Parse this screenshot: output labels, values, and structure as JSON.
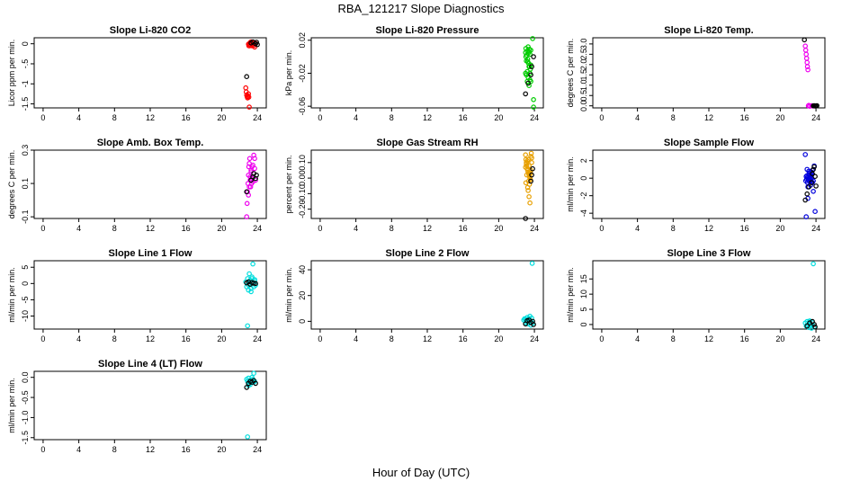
{
  "title": "RBA_121217  Slope Diagnostics",
  "x_label": "Hour of Day (UTC)",
  "chart_data": [
    {
      "type": "scatter",
      "title": "Slope Li-820 CO2",
      "xlabel": "",
      "ylabel": "Licor ppm per min.",
      "xlim": [
        -1,
        25
      ],
      "ylim": [
        -1.6,
        0.15
      ],
      "xticks": [
        0,
        4,
        8,
        12,
        16,
        20,
        24
      ],
      "yticks": [
        0,
        -0.5,
        -1,
        -1.5
      ],
      "ytick_labels": [
        "0",
        "-.5",
        "-1",
        "-1.5"
      ],
      "series": [
        {
          "name": "red",
          "color": "#ff0000",
          "x": [
            22.7,
            22.75,
            22.8,
            22.85,
            22.9,
            22.95,
            23.0,
            23.05,
            23.1,
            23.15,
            23.2,
            23.0,
            23.05,
            23.1,
            23.2,
            23.25,
            23.3,
            23.4,
            23.5,
            23.6,
            23.7,
            23.8
          ],
          "y": [
            -1.1,
            -1.2,
            -1.28,
            -1.32,
            -1.35,
            -1.3,
            -1.25,
            -1.33,
            -1.58,
            -0.05,
            -0.02,
            -0.01,
            -0.05,
            0.0,
            0.03,
            -0.03,
            0.05,
            -0.05,
            0.02,
            -0.04,
            -0.08,
            0.01
          ]
        },
        {
          "name": "black",
          "color": "#000000",
          "x": [
            22.8,
            23.3,
            23.5,
            23.8,
            23.9,
            24.0
          ],
          "y": [
            -0.82,
            0.02,
            0.05,
            0.0,
            0.04,
            -0.02
          ]
        }
      ]
    },
    {
      "type": "scatter",
      "title": "Slope Li-820 Pressure",
      "xlabel": "",
      "ylabel": "kPa per min.",
      "xlim": [
        -1,
        25
      ],
      "ylim": [
        -0.062,
        0.023
      ],
      "xticks": [
        0,
        4,
        8,
        12,
        16,
        20,
        24
      ],
      "yticks": [
        0.02,
        -0.02,
        -0.06
      ],
      "ytick_labels": [
        "0.02",
        "-0.02",
        "-0.06"
      ],
      "series": [
        {
          "name": "green",
          "color": "#00cc00",
          "x": [
            23.0,
            23.05,
            23.1,
            23.15,
            23.2,
            23.25,
            23.3,
            23.35,
            23.4,
            23.45,
            23.5,
            23.55,
            23.6,
            23.0,
            23.1,
            23.2,
            23.3,
            23.4,
            23.5,
            23.6,
            23.05,
            23.25,
            23.45,
            23.2,
            23.4,
            23.3,
            23.5,
            23.6,
            23.8,
            23.9
          ],
          "y": [
            0.005,
            0.0,
            -0.005,
            0.002,
            0.007,
            -0.003,
            0.004,
            -0.008,
            0.006,
            -0.012,
            0.003,
            -0.015,
            0.008,
            -0.02,
            -0.022,
            -0.018,
            -0.025,
            -0.012,
            -0.028,
            -0.01,
            0.01,
            -0.006,
            0.009,
            -0.03,
            -0.035,
            0.012,
            -0.02,
            -0.03,
            0.022,
            -0.052
          ]
        },
        {
          "name": "black",
          "color": "#000000",
          "x": [
            23.0,
            23.3,
            23.6,
            23.7,
            23.9
          ],
          "y": [
            -0.045,
            -0.032,
            -0.022,
            -0.012,
            0.0
          ]
        },
        {
          "name": "green2",
          "color": "#00cc00",
          "x": [
            23.9
          ],
          "y": [
            -0.061
          ]
        }
      ]
    },
    {
      "type": "scatter",
      "title": "Slope Li-820 Temp.",
      "xlabel": "",
      "ylabel": "degrees C per min.",
      "xlim": [
        -1,
        25
      ],
      "ylim": [
        -0.1,
        3.3
      ],
      "xticks": [
        0,
        4,
        8,
        12,
        16,
        20,
        24
      ],
      "yticks": [
        3.0,
        2.5,
        2.0,
        1.5,
        1.0,
        0.5,
        0.0
      ],
      "ytick_labels": [
        "3.0",
        "2.5",
        "2.0",
        "1.5",
        "1.0",
        "0.5",
        "0.0"
      ],
      "series": [
        {
          "name": "magenta",
          "color": "#ee00ee",
          "x": [
            22.8,
            22.85,
            22.9,
            22.95,
            23.0,
            23.05,
            23.1,
            23.15,
            23.2,
            23.3,
            23.5,
            23.6,
            23.7
          ],
          "y": [
            2.9,
            2.7,
            2.5,
            2.3,
            2.1,
            1.9,
            1.75,
            0.0,
            0.02,
            -0.02,
            0.01,
            0.0,
            -0.01
          ]
        },
        {
          "name": "black",
          "color": "#000000",
          "x": [
            22.7,
            23.7,
            23.8,
            23.9,
            24.0,
            24.1
          ],
          "y": [
            3.2,
            0.0,
            0.01,
            -0.01,
            0.0,
            0.01
          ]
        }
      ]
    },
    {
      "type": "scatter",
      "title": "Slope Amb. Box Temp.",
      "xlabel": "",
      "ylabel": "degrees C per min.",
      "xlim": [
        -1,
        25
      ],
      "ylim": [
        -0.11,
        0.3
      ],
      "xticks": [
        0,
        4,
        8,
        12,
        16,
        20,
        24
      ],
      "yticks": [
        0.3,
        0.1,
        -0.1
      ],
      "ytick_labels": [
        "0.3",
        "0.1",
        "-0.1"
      ],
      "series": [
        {
          "name": "magenta",
          "color": "#ee00ee",
          "x": [
            22.8,
            22.85,
            22.9,
            22.95,
            23.0,
            23.05,
            23.1,
            23.15,
            23.2,
            23.25,
            23.3,
            23.35,
            23.4,
            23.5,
            23.6,
            23.7,
            23.0,
            23.1,
            23.2,
            23.3,
            23.4,
            23.5,
            23.6,
            23.7,
            23.8
          ],
          "y": [
            -0.1,
            -0.02,
            0.05,
            0.1,
            0.15,
            0.2,
            0.22,
            0.25,
            0.12,
            0.08,
            0.18,
            0.1,
            0.13,
            0.21,
            0.27,
            0.25,
            0.03,
            0.08,
            0.14,
            0.17,
            0.2,
            0.11,
            0.16,
            0.19,
            0.12
          ]
        },
        {
          "name": "black",
          "color": "#000000",
          "x": [
            22.8,
            23.3,
            23.5,
            23.6,
            23.8,
            23.9
          ],
          "y": [
            0.05,
            0.12,
            0.14,
            0.16,
            0.13,
            0.15
          ]
        }
      ]
    },
    {
      "type": "scatter",
      "title": "Slope Gas Stream RH",
      "xlabel": "",
      "ylabel": "percent per min.",
      "xlim": [
        -1,
        25
      ],
      "ylim": [
        -0.26,
        0.18
      ],
      "xticks": [
        0,
        4,
        8,
        12,
        16,
        20,
        24
      ],
      "yticks": [
        0.1,
        0.0,
        -0.1,
        -0.2
      ],
      "ytick_labels": [
        "0.10",
        "0.00",
        "-0.10",
        "-0.20"
      ],
      "series": [
        {
          "name": "orange",
          "color": "#e8a000",
          "x": [
            23.0,
            23.05,
            23.1,
            23.15,
            23.2,
            23.25,
            23.3,
            23.35,
            23.4,
            23.45,
            23.5,
            23.55,
            23.6,
            23.65,
            23.7,
            23.0,
            23.1,
            23.2,
            23.3,
            23.4,
            23.5,
            23.6,
            23.7,
            23.05,
            23.25,
            23.45,
            23.15,
            23.35,
            23.55,
            23.3,
            23.4,
            23.5
          ],
          "y": [
            0.15,
            0.12,
            0.1,
            0.08,
            0.06,
            0.05,
            0.04,
            0.03,
            0.02,
            0.01,
            0.0,
            -0.01,
            0.14,
            0.16,
            0.13,
            0.07,
            0.09,
            0.11,
            0.12,
            0.08,
            0.04,
            0.05,
            0.1,
            -0.03,
            -0.06,
            -0.04,
            0.02,
            -0.02,
            0.03,
            -0.08,
            -0.12,
            -0.16
          ]
        },
        {
          "name": "black",
          "color": "#000000",
          "x": [
            23.0,
            23.6,
            23.7,
            23.8
          ],
          "y": [
            -0.26,
            -0.02,
            0.02,
            0.06
          ]
        }
      ]
    },
    {
      "type": "scatter",
      "title": "Slope Sample Flow",
      "xlabel": "",
      "ylabel": "ml/min per min.",
      "xlim": [
        -1,
        25
      ],
      "ylim": [
        -4.6,
        3.2
      ],
      "xticks": [
        0,
        4,
        8,
        12,
        16,
        20,
        24
      ],
      "yticks": [
        2,
        0,
        -2,
        -4
      ],
      "ytick_labels": [
        "2",
        "0",
        "-2",
        "-4"
      ],
      "series": [
        {
          "name": "blue",
          "color": "#0000dd",
          "x": [
            22.8,
            22.85,
            22.9,
            22.95,
            23.0,
            23.05,
            23.1,
            23.15,
            23.2,
            23.25,
            23.3,
            23.35,
            23.4,
            23.45,
            23.5,
            23.55,
            23.6,
            23.0,
            23.1,
            23.2,
            23.3,
            23.4,
            23.5,
            23.6,
            23.7,
            23.8,
            23.1,
            23.3,
            23.5,
            22.9,
            23.7,
            23.9
          ],
          "y": [
            2.7,
            -0.3,
            0.2,
            -0.1,
            0.3,
            -0.5,
            0.1,
            -0.2,
            0.4,
            0.0,
            -0.4,
            0.2,
            0.3,
            -0.2,
            0.0,
            0.5,
            -0.5,
            1.0,
            -1.0,
            0.8,
            0.6,
            -0.8,
            0.3,
            0.9,
            -0.3,
            1.4,
            -2.3,
            0.1,
            0.7,
            -4.4,
            -1.5,
            -3.8
          ]
        },
        {
          "name": "black",
          "color": "#000000",
          "x": [
            22.8,
            23.0,
            23.2,
            23.5,
            23.6,
            23.7,
            23.8,
            23.9,
            24.0
          ],
          "y": [
            -2.5,
            -1.8,
            -1.0,
            -0.5,
            0.5,
            1.0,
            1.3,
            0.2,
            -0.9
          ]
        }
      ]
    },
    {
      "type": "scatter",
      "title": "Slope Line 1 Flow",
      "xlabel": "",
      "ylabel": "ml/min per min.",
      "xlim": [
        -1,
        25
      ],
      "ylim": [
        -14,
        7
      ],
      "xticks": [
        0,
        4,
        8,
        12,
        16,
        20,
        24
      ],
      "yticks": [
        5,
        0,
        -5,
        -10
      ],
      "ytick_labels": [
        "5",
        "0",
        "-5",
        "-10"
      ],
      "series": [
        {
          "name": "cyan",
          "color": "#00dddd",
          "x": [
            22.7,
            22.8,
            22.9,
            23.0,
            23.1,
            23.2,
            23.3,
            23.4,
            23.5,
            23.6,
            23.7,
            23.8,
            22.9,
            23.1,
            23.3,
            23.5,
            23.7,
            23.0,
            23.4
          ],
          "y": [
            0.5,
            -1.0,
            1.5,
            -2.0,
            0.0,
            1.0,
            -1.5,
            2.0,
            0.5,
            -1.0,
            1.2,
            -0.5,
            -13.0,
            3.0,
            -2.5,
            6.0,
            0.8,
            -0.5,
            1.5
          ]
        },
        {
          "name": "black",
          "color": "#000000",
          "x": [
            22.8,
            23.0,
            23.2,
            23.4,
            23.6,
            23.8
          ],
          "y": [
            0.2,
            0.5,
            -0.2,
            0.3,
            0.1,
            0.0
          ]
        }
      ]
    },
    {
      "type": "scatter",
      "title": "Slope Line 2 Flow",
      "xlabel": "",
      "ylabel": "ml/min per min.",
      "xlim": [
        -1,
        25
      ],
      "ylim": [
        -6,
        47
      ],
      "xticks": [
        0,
        4,
        8,
        12,
        16,
        20,
        24
      ],
      "yticks": [
        40,
        20,
        0
      ],
      "ytick_labels": [
        "40",
        "20",
        "0"
      ],
      "series": [
        {
          "name": "cyan",
          "color": "#00dddd",
          "x": [
            22.8,
            22.9,
            23.0,
            23.1,
            23.2,
            23.3,
            23.4,
            23.5,
            23.6,
            23.7,
            23.8,
            23.0,
            23.2,
            23.4,
            23.6,
            23.75
          ],
          "y": [
            1.0,
            2.0,
            -1.0,
            0.5,
            3.0,
            -2.0,
            1.5,
            4.0,
            0.0,
            2.5,
            -1.5,
            1.8,
            -0.5,
            2.2,
            -3.0,
            45.0
          ]
        },
        {
          "name": "black",
          "color": "#000000",
          "x": [
            23.0,
            23.2,
            23.4,
            23.6,
            23.8,
            23.9
          ],
          "y": [
            -2.0,
            0.5,
            1.0,
            -1.0,
            0.0,
            -2.5
          ]
        }
      ]
    },
    {
      "type": "scatter",
      "title": "Slope Line 3 Flow",
      "xlabel": "",
      "ylabel": "ml/min per min.",
      "xlim": [
        -1,
        25
      ],
      "ylim": [
        -1.5,
        21
      ],
      "xticks": [
        0,
        4,
        8,
        12,
        16,
        20,
        24
      ],
      "yticks": [
        15,
        10,
        5,
        0
      ],
      "ytick_labels": [
        "15",
        "10",
        "5",
        "0"
      ],
      "series": [
        {
          "name": "cyan",
          "color": "#00dddd",
          "x": [
            22.8,
            22.9,
            23.0,
            23.1,
            23.2,
            23.3,
            23.4,
            23.5,
            23.6,
            23.7,
            23.8,
            23.3,
            23.5
          ],
          "y": [
            0.5,
            -0.5,
            1.0,
            0.0,
            -1.0,
            0.8,
            0.2,
            -0.3,
            0.6,
            20.0,
            -0.8,
            1.2,
            -1.2
          ]
        },
        {
          "name": "black",
          "color": "#000000",
          "x": [
            23.0,
            23.3,
            23.6,
            23.8,
            23.9
          ],
          "y": [
            -0.5,
            0.5,
            1.0,
            0.0,
            -0.8
          ]
        }
      ]
    },
    {
      "type": "scatter",
      "title": "Slope Line 4 (LT) Flow",
      "xlabel": "",
      "ylabel": "ml/min per min.",
      "xlim": [
        -1,
        25
      ],
      "ylim": [
        -1.55,
        0.15
      ],
      "xticks": [
        0,
        4,
        8,
        12,
        16,
        20,
        24
      ],
      "yticks": [
        0.0,
        -0.5,
        -1.0,
        -1.5
      ],
      "ytick_labels": [
        "0.0",
        "-0.5",
        "-1.0",
        "-1.5"
      ],
      "series": [
        {
          "name": "cyan",
          "color": "#00dddd",
          "x": [
            22.8,
            22.9,
            23.0,
            23.1,
            23.2,
            23.3,
            23.4,
            23.5,
            23.6,
            23.7,
            23.0,
            23.2,
            23.4,
            23.6,
            22.9
          ],
          "y": [
            -0.05,
            -0.1,
            -0.02,
            -0.15,
            -0.08,
            -0.12,
            0.0,
            -0.05,
            0.1,
            -0.1,
            -0.2,
            -0.18,
            -0.08,
            -0.12,
            -1.48
          ]
        },
        {
          "name": "black",
          "color": "#000000",
          "x": [
            22.8,
            23.0,
            23.2,
            23.4,
            23.6,
            23.8
          ],
          "y": [
            -0.25,
            -0.15,
            -0.1,
            -0.12,
            -0.08,
            -0.15
          ]
        }
      ]
    }
  ]
}
